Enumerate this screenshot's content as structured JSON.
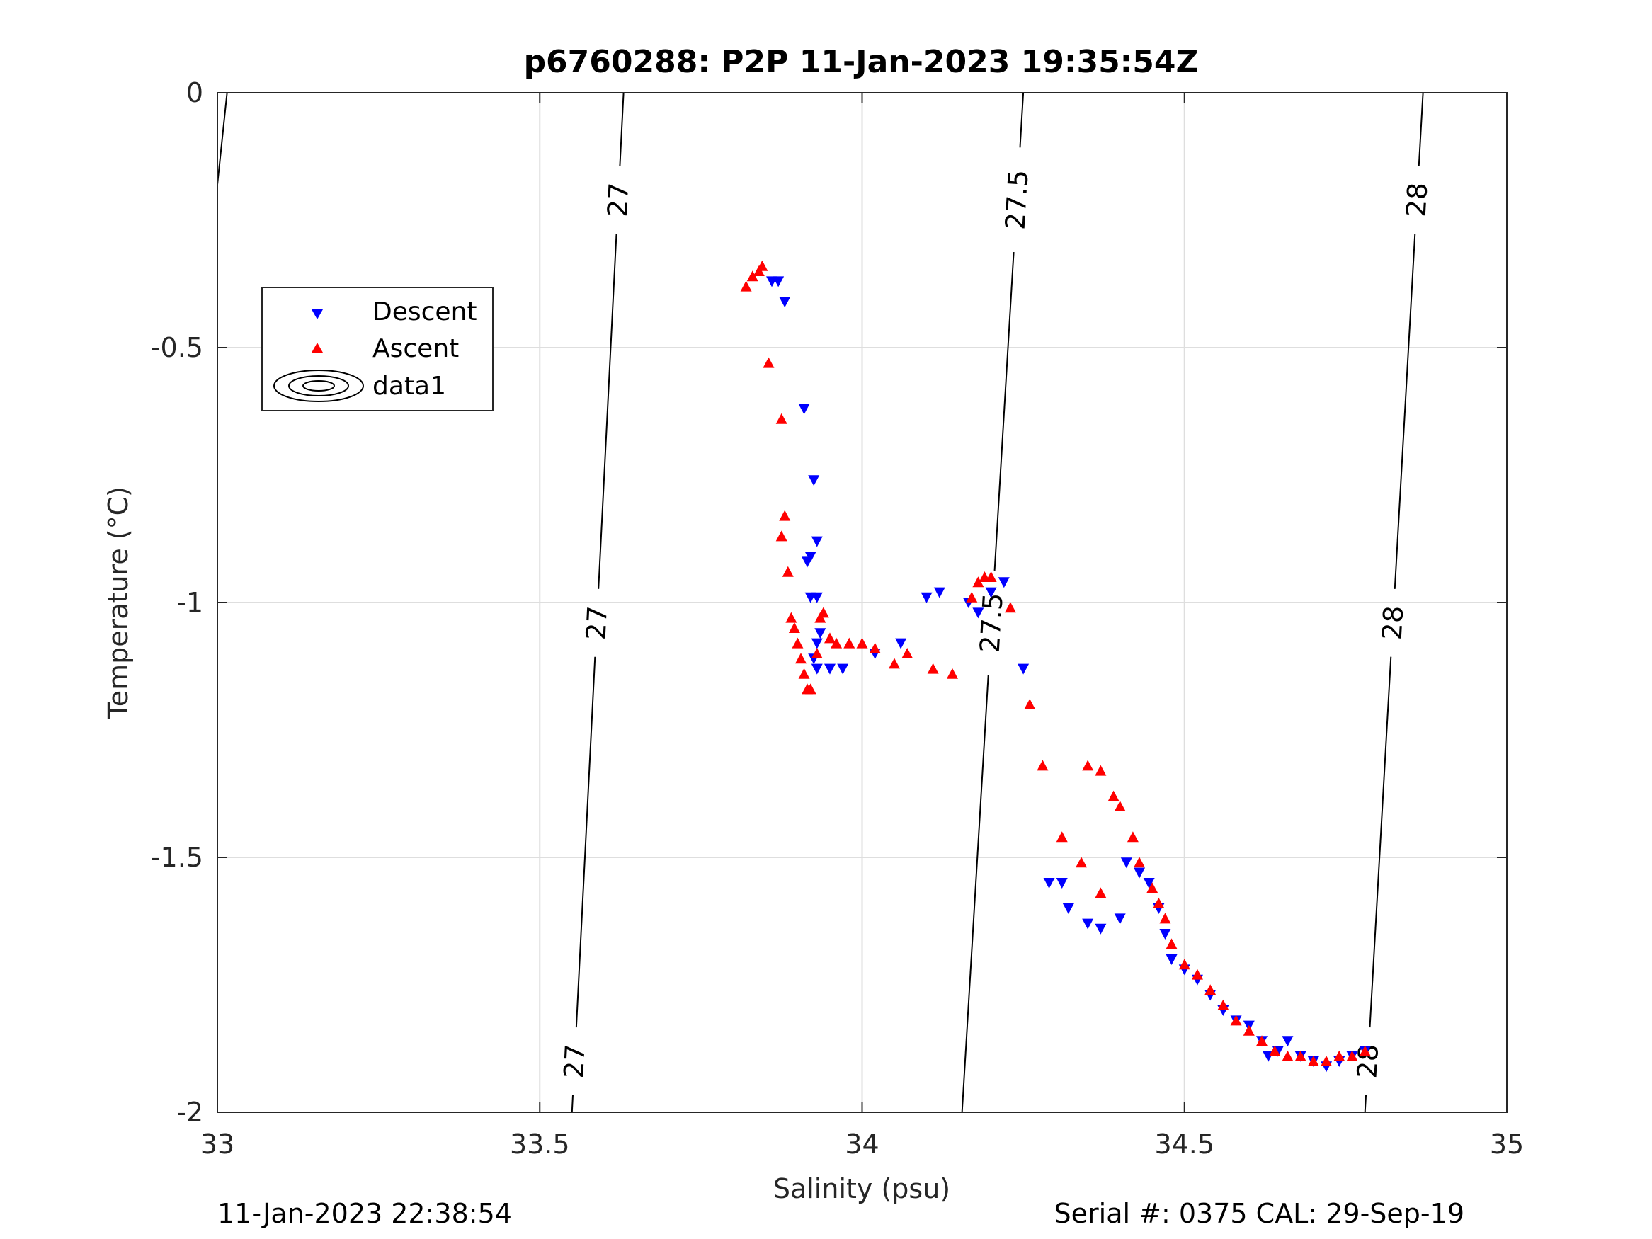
{
  "title": "p6760288: P2P 11-Jan-2023 19:35:54Z",
  "footer": {
    "left": "11-Jan-2023 22:38:54",
    "right": "Serial #: 0375  CAL: 29-Sep-19"
  },
  "legend": {
    "placement": "upper-left",
    "items": [
      {
        "label": "Descent",
        "color": "#0000ff",
        "marker": "triangle-down"
      },
      {
        "label": "Ascent",
        "color": "#ff0000",
        "marker": "triangle-up"
      },
      {
        "label": "data1",
        "color": "#000000",
        "marker": "contour"
      }
    ]
  },
  "chart_data": {
    "type": "scatter",
    "title": "p6760288: P2P 11-Jan-2023 19:35:54Z",
    "xlabel": "Salinity (psu)",
    "ylabel": "Temperature (°C)",
    "xlim": [
      33,
      35
    ],
    "ylim": [
      -2,
      0
    ],
    "grid": true,
    "xticks": [
      "33",
      "33.5",
      "34",
      "34.5",
      "35"
    ],
    "yticks": [
      "0",
      "-0.5",
      "-1",
      "-1.5",
      "-2"
    ],
    "contours": [
      {
        "level": "27",
        "line": [
          [
            33.55,
            -2.0
          ],
          [
            33.63,
            0.0
          ]
        ],
        "labels": [
          [
            33.57,
            -1.5
          ],
          [
            33.598,
            -1.04
          ],
          [
            33.62,
            -0.2
          ]
        ],
        "label_y": [
          -1.9,
          -1.04,
          -0.21
        ]
      },
      {
        "level": "27.5",
        "line": [
          [
            34.155,
            -2.0
          ],
          [
            34.25,
            0.0
          ]
        ],
        "labels": [],
        "label_y": [
          -1.04,
          -0.21
        ]
      },
      {
        "level": "28",
        "line": [
          [
            34.78,
            -2.0
          ],
          [
            34.87,
            0.0
          ]
        ],
        "labels": [],
        "label_y": [
          -1.9,
          -1.04,
          -0.21
        ]
      },
      {
        "level": "",
        "line": [
          [
            33.0,
            -0.18
          ],
          [
            33.015,
            0.0
          ]
        ],
        "labels": [],
        "label_y": []
      }
    ],
    "series": [
      {
        "name": "Descent",
        "color": "#0000ff",
        "marker": "triangle-down",
        "points": [
          [
            33.86,
            -0.37
          ],
          [
            33.87,
            -0.37
          ],
          [
            33.88,
            -0.41
          ],
          [
            33.91,
            -0.62
          ],
          [
            33.925,
            -0.76
          ],
          [
            33.93,
            -0.88
          ],
          [
            33.92,
            -0.91
          ],
          [
            33.915,
            -0.92
          ],
          [
            33.92,
            -0.99
          ],
          [
            33.93,
            -0.99
          ],
          [
            33.935,
            -1.06
          ],
          [
            33.93,
            -1.08
          ],
          [
            33.925,
            -1.11
          ],
          [
            33.93,
            -1.13
          ],
          [
            33.95,
            -1.13
          ],
          [
            33.97,
            -1.13
          ],
          [
            34.02,
            -1.1
          ],
          [
            34.06,
            -1.08
          ],
          [
            34.1,
            -0.99
          ],
          [
            34.12,
            -0.98
          ],
          [
            34.165,
            -1.0
          ],
          [
            34.18,
            -1.02
          ],
          [
            34.2,
            -0.98
          ],
          [
            34.22,
            -0.96
          ],
          [
            34.25,
            -1.13
          ],
          [
            34.29,
            -1.55
          ],
          [
            34.31,
            -1.55
          ],
          [
            34.32,
            -1.6
          ],
          [
            34.35,
            -1.63
          ],
          [
            34.37,
            -1.64
          ],
          [
            34.4,
            -1.62
          ],
          [
            34.41,
            -1.51
          ],
          [
            34.43,
            -1.53
          ],
          [
            34.445,
            -1.55
          ],
          [
            34.46,
            -1.6
          ],
          [
            34.47,
            -1.65
          ],
          [
            34.48,
            -1.7
          ],
          [
            34.5,
            -1.72
          ],
          [
            34.52,
            -1.74
          ],
          [
            34.54,
            -1.77
          ],
          [
            34.56,
            -1.8
          ],
          [
            34.58,
            -1.82
          ],
          [
            34.6,
            -1.83
          ],
          [
            34.62,
            -1.86
          ],
          [
            34.63,
            -1.89
          ],
          [
            34.645,
            -1.88
          ],
          [
            34.66,
            -1.86
          ],
          [
            34.68,
            -1.89
          ],
          [
            34.7,
            -1.9
          ],
          [
            34.72,
            -1.91
          ],
          [
            34.74,
            -1.9
          ],
          [
            34.76,
            -1.89
          ],
          [
            34.78,
            -1.88
          ]
        ]
      },
      {
        "name": "Ascent",
        "color": "#ff0000",
        "marker": "triangle-up",
        "points": [
          [
            33.82,
            -0.38
          ],
          [
            33.83,
            -0.36
          ],
          [
            33.84,
            -0.35
          ],
          [
            33.845,
            -0.34
          ],
          [
            33.855,
            -0.53
          ],
          [
            33.875,
            -0.64
          ],
          [
            33.88,
            -0.83
          ],
          [
            33.875,
            -0.87
          ],
          [
            33.885,
            -0.94
          ],
          [
            33.89,
            -1.03
          ],
          [
            33.895,
            -1.05
          ],
          [
            33.9,
            -1.08
          ],
          [
            33.905,
            -1.11
          ],
          [
            33.91,
            -1.14
          ],
          [
            33.915,
            -1.17
          ],
          [
            33.92,
            -1.17
          ],
          [
            33.93,
            -1.1
          ],
          [
            33.935,
            -1.03
          ],
          [
            33.94,
            -1.02
          ],
          [
            33.95,
            -1.07
          ],
          [
            33.96,
            -1.08
          ],
          [
            33.98,
            -1.08
          ],
          [
            34.0,
            -1.08
          ],
          [
            34.02,
            -1.09
          ],
          [
            34.05,
            -1.12
          ],
          [
            34.07,
            -1.1
          ],
          [
            34.11,
            -1.13
          ],
          [
            34.14,
            -1.14
          ],
          [
            34.17,
            -0.99
          ],
          [
            34.18,
            -0.96
          ],
          [
            34.19,
            -0.95
          ],
          [
            34.2,
            -0.95
          ],
          [
            34.23,
            -1.01
          ],
          [
            34.26,
            -1.2
          ],
          [
            34.28,
            -1.32
          ],
          [
            34.31,
            -1.46
          ],
          [
            34.34,
            -1.51
          ],
          [
            34.37,
            -1.57
          ],
          [
            34.35,
            -1.32
          ],
          [
            34.37,
            -1.33
          ],
          [
            34.39,
            -1.38
          ],
          [
            34.4,
            -1.4
          ],
          [
            34.42,
            -1.46
          ],
          [
            34.43,
            -1.51
          ],
          [
            34.45,
            -1.56
          ],
          [
            34.46,
            -1.59
          ],
          [
            34.47,
            -1.62
          ],
          [
            34.48,
            -1.67
          ],
          [
            34.5,
            -1.71
          ],
          [
            34.52,
            -1.73
          ],
          [
            34.54,
            -1.76
          ],
          [
            34.56,
            -1.79
          ],
          [
            34.58,
            -1.82
          ],
          [
            34.6,
            -1.84
          ],
          [
            34.62,
            -1.86
          ],
          [
            34.64,
            -1.88
          ],
          [
            34.66,
            -1.89
          ],
          [
            34.68,
            -1.89
          ],
          [
            34.7,
            -1.9
          ],
          [
            34.72,
            -1.9
          ],
          [
            34.74,
            -1.89
          ],
          [
            34.76,
            -1.89
          ],
          [
            34.78,
            -1.88
          ]
        ]
      }
    ]
  }
}
